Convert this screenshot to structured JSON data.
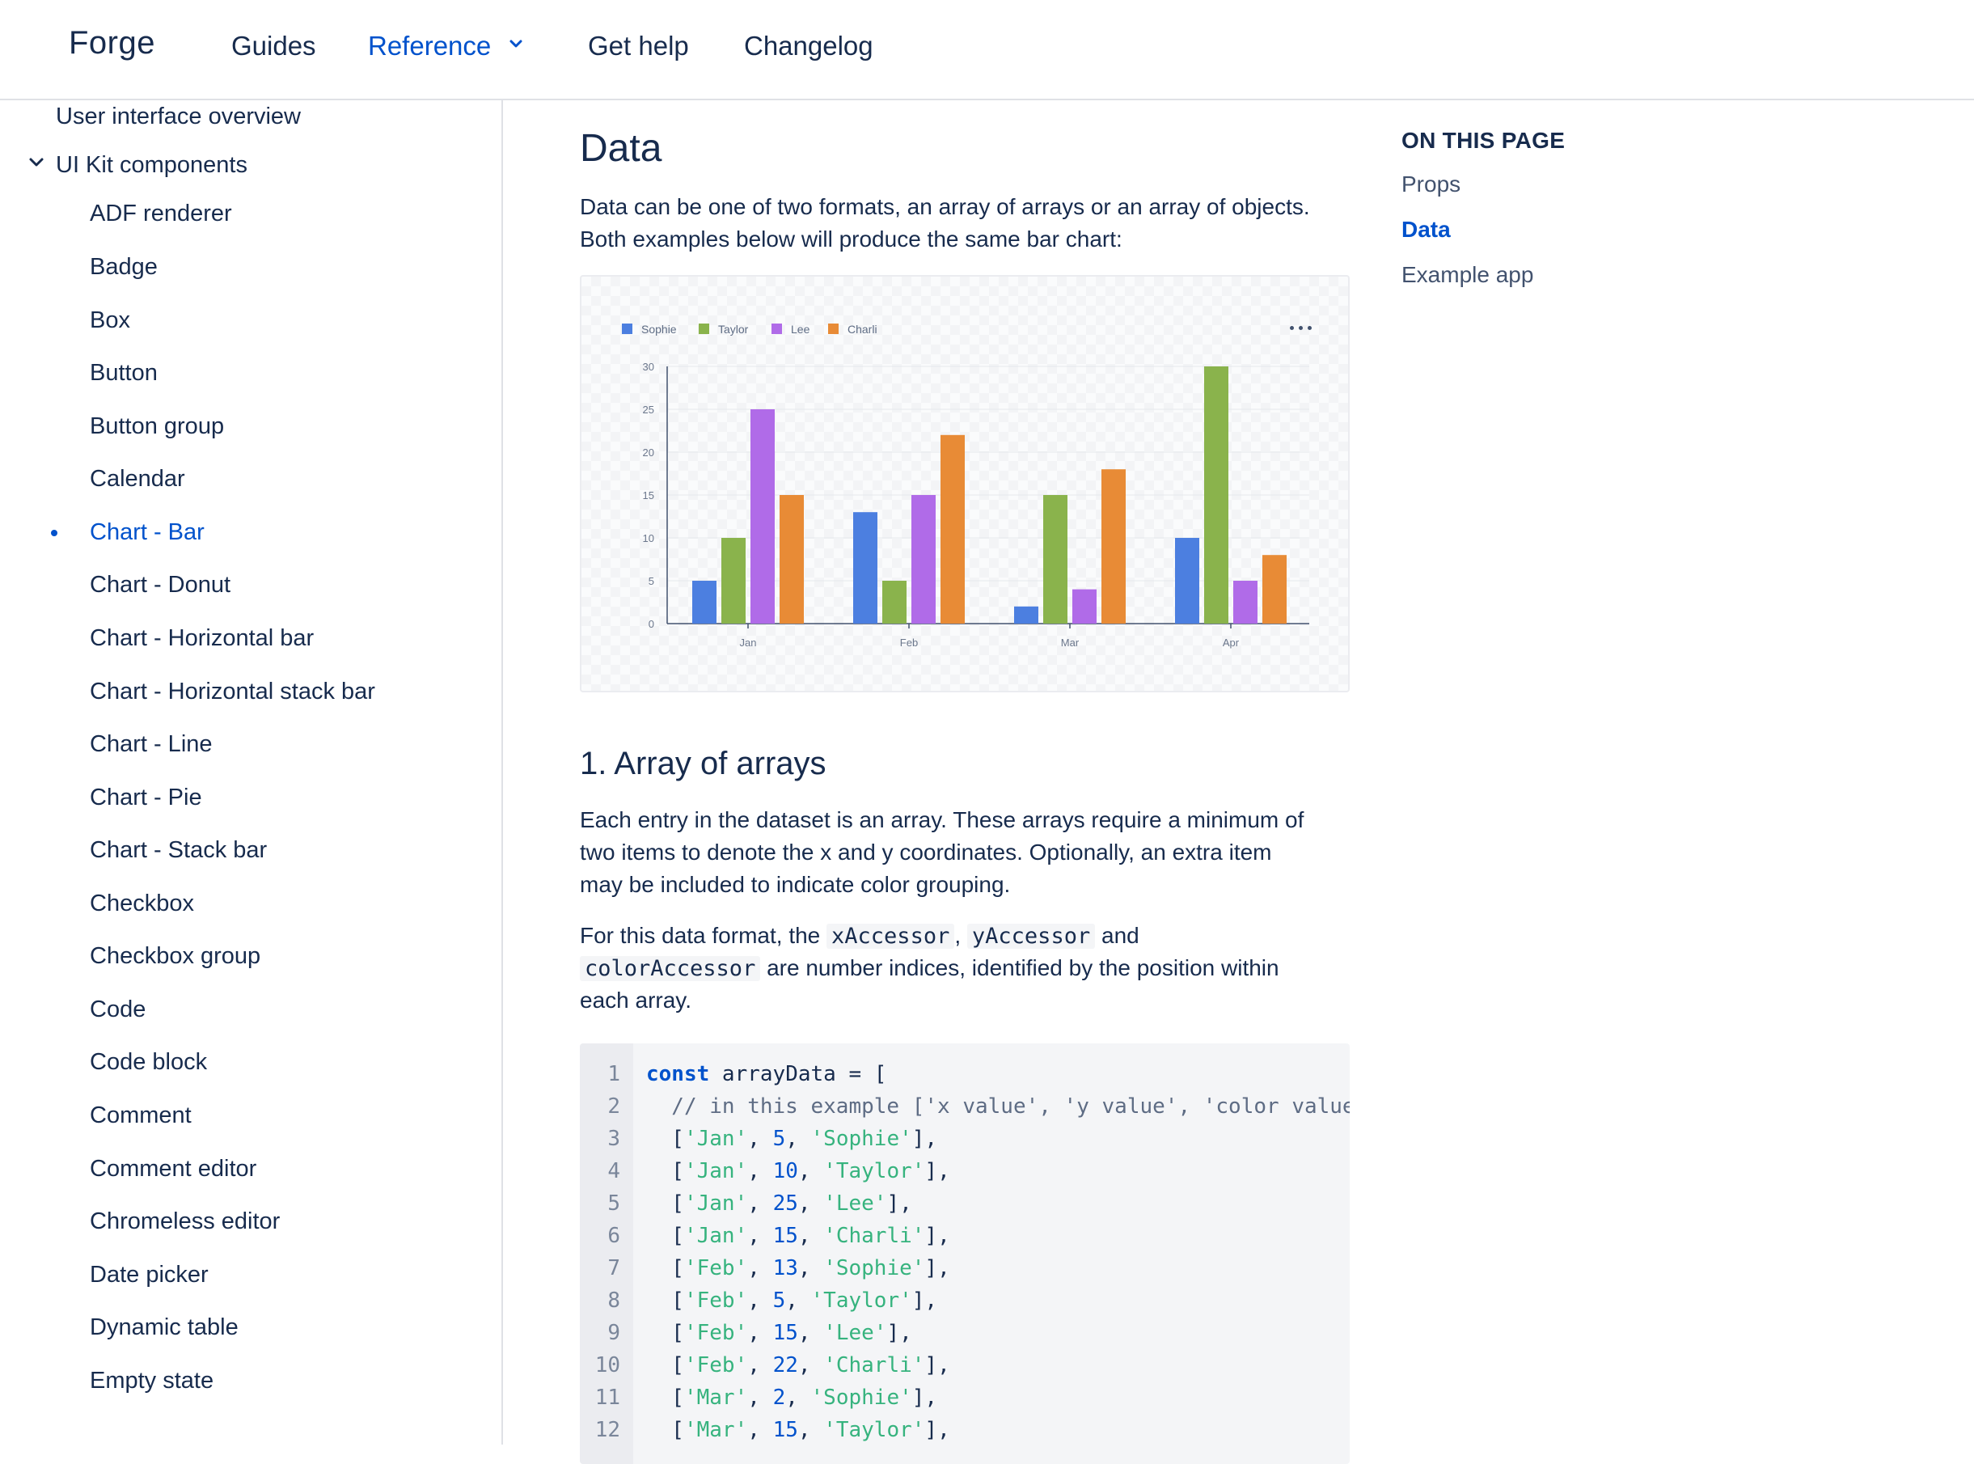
{
  "header": {
    "brand": "Forge",
    "nav": [
      {
        "label": "Guides"
      },
      {
        "label": "Reference"
      },
      {
        "label": "Get help"
      },
      {
        "label": "Changelog"
      }
    ]
  },
  "sidebar": {
    "items": [
      {
        "label": "User interface overview"
      },
      {
        "label": "UI Kit components"
      },
      {
        "label": "ADF renderer"
      },
      {
        "label": "Badge"
      },
      {
        "label": "Box"
      },
      {
        "label": "Button"
      },
      {
        "label": "Button group"
      },
      {
        "label": "Calendar"
      },
      {
        "label": "Chart - Bar"
      },
      {
        "label": "Chart - Donut"
      },
      {
        "label": "Chart - Horizontal bar"
      },
      {
        "label": "Chart - Horizontal stack bar"
      },
      {
        "label": "Chart - Line"
      },
      {
        "label": "Chart - Pie"
      },
      {
        "label": "Chart - Stack bar"
      },
      {
        "label": "Checkbox"
      },
      {
        "label": "Checkbox group"
      },
      {
        "label": "Code"
      },
      {
        "label": "Code block"
      },
      {
        "label": "Comment"
      },
      {
        "label": "Comment editor"
      },
      {
        "label": "Chromeless editor"
      },
      {
        "label": "Date picker"
      },
      {
        "label": "Dynamic table"
      },
      {
        "label": "Empty state"
      }
    ]
  },
  "main": {
    "title": "Data",
    "intro_line1": "Data can be one of two formats, an array of arrays or an array of objects.",
    "intro_line2": "Both examples below will produce the same bar chart:",
    "section_title": "1. Array of arrays",
    "p1_line1": "Each entry in the dataset is an array. These arrays require a minimum of",
    "p1_line2": "two items to denote the x and y coordinates. Optionally, an extra item",
    "p1_line3": "may be included to indicate color grouping.",
    "p2_pre": "For this data format, the",
    "p2_code1": "xAccessor",
    "p2_sep": ",",
    "p2_code2": "yAccessor",
    "p2_and": "and",
    "p2_code3": "colorAccessor",
    "p2_post": "are number indices, identified by the position within",
    "p2_line3": "each array."
  },
  "code": {
    "line_numbers": [
      "1",
      "2",
      "3",
      "4",
      "5",
      "6",
      "7",
      "8",
      "9",
      "10",
      "11",
      "12"
    ],
    "keyword": "const",
    "decl": " arrayData = [",
    "comment": "  // in this example ['x value', 'y value', 'color value']",
    "rows": [
      {
        "x": "'Jan'",
        "y": "5",
        "c": "'Sophie'"
      },
      {
        "x": "'Jan'",
        "y": "10",
        "c": "'Taylor'"
      },
      {
        "x": "'Jan'",
        "y": "25",
        "c": "'Lee'"
      },
      {
        "x": "'Jan'",
        "y": "15",
        "c": "'Charli'"
      },
      {
        "x": "'Feb'",
        "y": "13",
        "c": "'Sophie'"
      },
      {
        "x": "'Feb'",
        "y": "5",
        "c": "'Taylor'"
      },
      {
        "x": "'Feb'",
        "y": "15",
        "c": "'Lee'"
      },
      {
        "x": "'Feb'",
        "y": "22",
        "c": "'Charli'"
      },
      {
        "x": "'Mar'",
        "y": "2",
        "c": "'Sophie'"
      },
      {
        "x": "'Mar'",
        "y": "15",
        "c": "'Taylor'"
      }
    ]
  },
  "toc": {
    "heading": "ON THIS PAGE",
    "items": [
      {
        "label": "Props"
      },
      {
        "label": "Data"
      },
      {
        "label": "Example app"
      }
    ]
  },
  "colors": {
    "accent": "#0052cc",
    "Sophie": "#4c7fe0",
    "Taylor": "#8ab34c",
    "Lee": "#b06be8",
    "Charli": "#e88b36"
  },
  "icons": {
    "nav_caret": "chevron-down-icon",
    "sidebar_expand": "chevron-down-icon",
    "chart_menu": "more-icon"
  },
  "chart_data": {
    "type": "bar",
    "categories": [
      "Jan",
      "Feb",
      "Mar",
      "Apr"
    ],
    "series": [
      {
        "name": "Sophie",
        "values": [
          5,
          13,
          2,
          10
        ]
      },
      {
        "name": "Taylor",
        "values": [
          10,
          5,
          15,
          30
        ]
      },
      {
        "name": "Lee",
        "values": [
          25,
          15,
          4,
          5
        ]
      },
      {
        "name": "Charli",
        "values": [
          15,
          22,
          18,
          8
        ]
      }
    ],
    "yticks": [
      "0",
      "5",
      "10",
      "15",
      "20",
      "25",
      "30"
    ],
    "ylim": [
      0,
      30
    ],
    "grid": true,
    "legend": "top-left"
  }
}
